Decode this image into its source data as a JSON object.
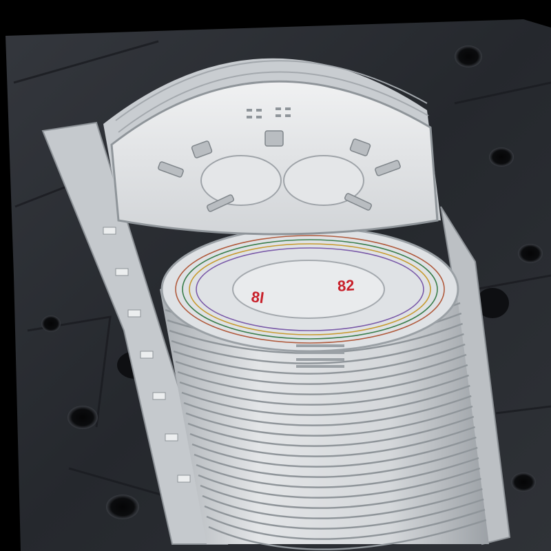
{
  "photo": {
    "subject": "fiber-optic-splice-closure-tray-stack",
    "background": "dark-perforated-rubber-mat",
    "colors": {
      "mat": "#2a2d33",
      "mat_dark": "#15171b",
      "plastic": "#d9dcdf",
      "plastic_shadow": "#9ea3a8",
      "marker_ink": "#c8202a"
    }
  },
  "labels": {
    "tray_left": "8l",
    "tray_right": "82"
  }
}
